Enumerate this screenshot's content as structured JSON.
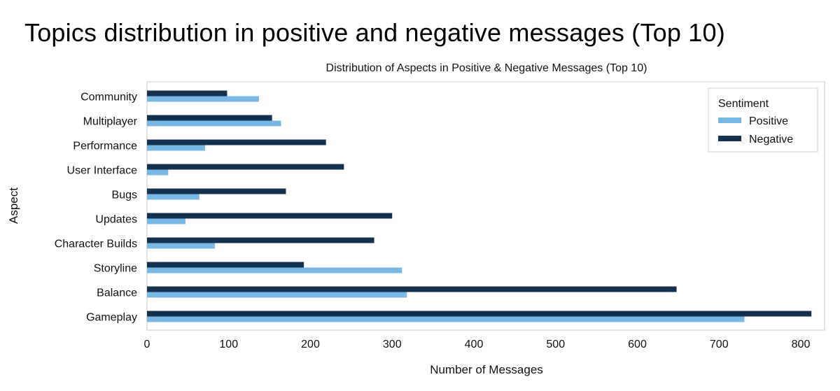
{
  "page": {
    "title": "Topics distribution in positive and negative messages (Top 10)"
  },
  "chart_data": {
    "type": "bar",
    "orientation": "horizontal",
    "title": "Distribution of Aspects in Positive & Negative Messages (Top 10)",
    "xlabel": "Number of Messages",
    "ylabel": "Aspect",
    "categories": [
      "Community",
      "Multiplayer",
      "Performance",
      "User Interface",
      "Bugs",
      "Updates",
      "Character Builds",
      "Storyline",
      "Balance",
      "Gameplay"
    ],
    "series": [
      {
        "name": "Positive",
        "color": "#79b8e4",
        "values": [
          137,
          164,
          71,
          26,
          64,
          47,
          83,
          312,
          318,
          731
        ]
      },
      {
        "name": "Negative",
        "color": "#14324f",
        "values": [
          98,
          153,
          219,
          241,
          170,
          300,
          278,
          192,
          648,
          813
        ]
      }
    ],
    "xlim": [
      0,
      840
    ],
    "xticks": [
      0,
      100,
      200,
      300,
      400,
      500,
      600,
      700,
      800
    ],
    "legend": {
      "title": "Sentiment",
      "position": "top-right"
    },
    "grid": false
  }
}
